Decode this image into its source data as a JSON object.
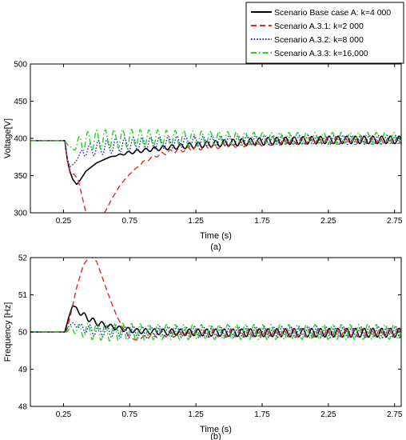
{
  "legend": {
    "placement": "top-right, above the voltage panel",
    "entries": [
      {
        "label": "Scenario Base case A: k=4 000",
        "color": "#000000",
        "dash": "solid"
      },
      {
        "label": "Scenario A.3.1: k=2 000",
        "color": "#e8261c",
        "dash": "dashed"
      },
      {
        "label": "Scenario A.3.2: k=8 000",
        "color": "#2424d8",
        "dash": "dotted"
      },
      {
        "label": "Scenario A.3.3: k=16,000",
        "color": "#22d022",
        "dash": "dash-dot"
      }
    ]
  },
  "chart_data": [
    {
      "type": "line",
      "panel_label": "(a)",
      "xlabel": "Time (s)",
      "ylabel": "Voltage[V]",
      "xlim": [
        0,
        2.8
      ],
      "ylim": [
        300,
        500
      ],
      "xticks": [
        "0.25",
        "0.75",
        "1.25",
        "1.75",
        "2.25",
        "2.75"
      ],
      "xtick_values": [
        0.25,
        0.75,
        1.25,
        1.75,
        2.25,
        2.75
      ],
      "yticks": [
        "300",
        "350",
        "400",
        "450",
        "500"
      ],
      "ytick_values": [
        300,
        350,
        400,
        450,
        500
      ],
      "grid": false,
      "series": [
        {
          "name": "Scenario Base case A: k=4 000",
          "color": "#000000",
          "x": [
            0,
            0.26,
            0.28,
            0.3,
            0.32,
            0.35,
            0.38,
            0.42,
            0.5,
            0.6,
            0.75,
            0.9,
            1.05,
            1.25,
            1.5,
            1.75,
            2.0,
            2.25,
            2.5,
            2.8
          ],
          "y": [
            397,
            397,
            370,
            355,
            345,
            338,
            345,
            356,
            367,
            375,
            381,
            385,
            388,
            391,
            394,
            396,
            397,
            398,
            398,
            398
          ],
          "osc_amp": [
            0,
            0,
            0,
            0,
            0,
            0,
            0,
            0,
            0,
            0,
            2,
            2.5,
            3,
            4,
            4.5,
            5,
            5,
            5,
            5,
            5
          ],
          "osc_period": 0.066
        },
        {
          "name": "Scenario A.3.1: k=2 000",
          "color": "#e8261c",
          "x": [
            0,
            0.26,
            0.28,
            0.3,
            0.33,
            0.36,
            0.42,
            0.5,
            0.56,
            0.62,
            0.68,
            0.75,
            0.85,
            0.95,
            1.05,
            1.25,
            1.5,
            1.75,
            2.0,
            2.25,
            2.5,
            2.8
          ],
          "y": [
            397,
            397,
            370,
            352,
            352,
            345,
            300,
            296,
            300,
            320,
            338,
            352,
            368,
            377,
            382,
            387,
            391,
            394,
            396,
            397,
            397,
            397
          ],
          "osc_amp": [
            0,
            0,
            0,
            0,
            0,
            0,
            0,
            0,
            0,
            0,
            0,
            0,
            1,
            2,
            2.5,
            3,
            3.5,
            4,
            4,
            4,
            4,
            4
          ],
          "osc_period": 0.066
        },
        {
          "name": "Scenario A.3.2: k=8 000",
          "color": "#2424d8",
          "x": [
            0,
            0.26,
            0.28,
            0.3,
            0.33,
            0.36,
            0.4,
            0.5,
            0.6,
            0.75,
            0.9,
            1.05,
            1.25,
            1.5,
            1.75,
            2.0,
            2.25,
            2.5,
            2.8
          ],
          "y": [
            397,
            397,
            372,
            362,
            366,
            375,
            382,
            387,
            390,
            392,
            394,
            395,
            396,
            397,
            398,
            398,
            398,
            398,
            398
          ],
          "osc_amp": [
            0,
            0,
            0,
            0,
            0,
            2,
            6,
            10,
            10,
            9,
            8,
            8,
            7,
            7,
            6,
            6,
            6,
            6,
            6
          ],
          "osc_period": 0.066
        },
        {
          "name": "Scenario A.3.3: k=16,000",
          "color": "#22d022",
          "x": [
            0,
            0.26,
            0.28,
            0.3,
            0.33,
            0.36,
            0.4,
            0.5,
            0.6,
            0.75,
            1.0,
            1.25,
            1.5,
            1.75,
            2.0,
            2.25,
            2.5,
            2.8
          ],
          "y": [
            397,
            397,
            392,
            386,
            388,
            393,
            396,
            398,
            399,
            400,
            400,
            400,
            400,
            400,
            400,
            400,
            400,
            400
          ],
          "osc_amp": [
            0,
            0,
            0,
            2,
            4,
            8,
            12,
            13,
            13,
            12,
            11,
            10,
            9,
            8,
            8,
            8,
            8,
            8
          ],
          "osc_period": 0.066
        }
      ]
    },
    {
      "type": "line",
      "panel_label": "(b)",
      "xlabel": "Time (s)",
      "ylabel": "Frequency [Hz]",
      "xlim": [
        0,
        2.8
      ],
      "ylim": [
        48,
        52
      ],
      "xticks": [
        "0.25",
        "0.75",
        "1.25",
        "1.75",
        "2.25",
        "2.75"
      ],
      "xtick_values": [
        0.25,
        0.75,
        1.25,
        1.75,
        2.25,
        2.75
      ],
      "yticks": [
        "48",
        "49",
        "50",
        "51",
        "52"
      ],
      "ytick_values": [
        48,
        49,
        50,
        51,
        52
      ],
      "grid": false,
      "series": [
        {
          "name": "Scenario Base case A: k=4 000",
          "color": "#000000",
          "x": [
            0,
            0.26,
            0.29,
            0.32,
            0.35,
            0.42,
            0.5,
            0.6,
            0.7,
            0.8,
            1.0,
            1.5,
            2.0,
            2.8
          ],
          "y": [
            50.0,
            50.0,
            50.4,
            50.72,
            50.6,
            50.4,
            50.25,
            50.15,
            50.08,
            50.03,
            50.0,
            49.98,
            49.98,
            49.98
          ],
          "osc_amp": [
            0,
            0,
            0,
            0,
            0.06,
            0.08,
            0.07,
            0.06,
            0.06,
            0.06,
            0.08,
            0.1,
            0.11,
            0.12
          ],
          "osc_period": 0.066
        },
        {
          "name": "Scenario A.3.1: k=2 000",
          "color": "#e8261c",
          "x": [
            0,
            0.27,
            0.3,
            0.35,
            0.4,
            0.45,
            0.5,
            0.55,
            0.6,
            0.65,
            0.7,
            0.75,
            0.8,
            0.85,
            0.9,
            1.0,
            1.5,
            2.0,
            2.8
          ],
          "y": [
            50.0,
            50.0,
            50.4,
            51.2,
            51.8,
            52.05,
            51.9,
            51.4,
            50.9,
            50.45,
            50.1,
            49.85,
            49.78,
            49.85,
            49.9,
            49.95,
            49.97,
            49.98,
            49.98
          ],
          "osc_amp": [
            0,
            0,
            0,
            0,
            0,
            0,
            0,
            0,
            0,
            0,
            0,
            0,
            0,
            0.03,
            0.06,
            0.08,
            0.1,
            0.11,
            0.11
          ],
          "osc_period": 0.066
        },
        {
          "name": "Scenario A.3.2: k=8 000",
          "color": "#2424d8",
          "x": [
            0,
            0.26,
            0.29,
            0.32,
            0.36,
            0.45,
            0.6,
            0.8,
            1.0,
            1.5,
            2.0,
            2.8
          ],
          "y": [
            50.0,
            50.0,
            50.15,
            50.25,
            50.15,
            50.05,
            50.02,
            50.0,
            50.0,
            50.0,
            50.0,
            50.0
          ],
          "osc_amp": [
            0,
            0,
            0,
            0,
            0.08,
            0.15,
            0.17,
            0.16,
            0.15,
            0.15,
            0.15,
            0.15
          ],
          "osc_period": 0.066
        },
        {
          "name": "Scenario A.3.3: k=16,000",
          "color": "#22d022",
          "x": [
            0,
            0.26,
            0.29,
            0.32,
            0.36,
            0.45,
            0.6,
            0.8,
            1.0,
            1.5,
            2.0,
            2.8
          ],
          "y": [
            50.0,
            50.0,
            50.05,
            50.1,
            50.05,
            50.02,
            50.0,
            50.0,
            50.0,
            50.0,
            50.0,
            50.0
          ],
          "osc_amp": [
            0,
            0,
            0.05,
            0.1,
            0.15,
            0.22,
            0.24,
            0.22,
            0.2,
            0.2,
            0.2,
            0.2
          ],
          "osc_period": 0.066
        }
      ]
    }
  ]
}
